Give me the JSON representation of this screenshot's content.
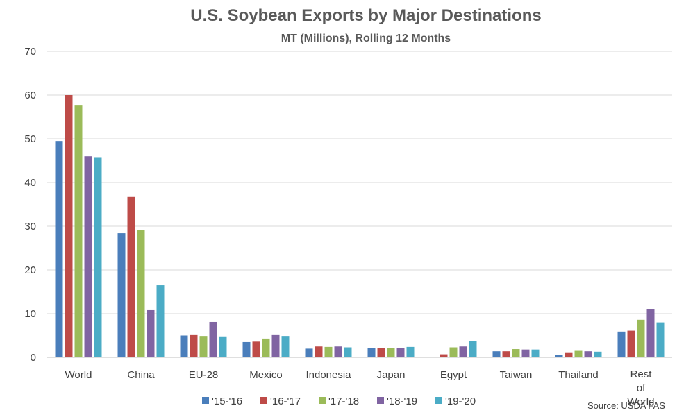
{
  "chart_data": {
    "type": "bar",
    "title": "U.S. Soybean Exports by Major Destinations",
    "subtitle": "MT (Millions), Rolling 12 Months",
    "categories": [
      "World",
      "China",
      "EU-28",
      "Mexico",
      "Indonesia",
      "Japan",
      "Egypt",
      "Taiwan",
      "Thailand",
      "Rest of World"
    ],
    "series": [
      {
        "name": "'15-'16",
        "color": "#4a7ebb",
        "values": [
          49.5,
          28.4,
          5.0,
          3.5,
          2.0,
          2.2,
          0.0,
          1.4,
          0.5,
          5.9
        ]
      },
      {
        "name": "'16-'17",
        "color": "#be4b48",
        "values": [
          60.0,
          36.7,
          5.1,
          3.6,
          2.5,
          2.2,
          0.7,
          1.4,
          1.0,
          6.1
        ]
      },
      {
        "name": "'17-'18",
        "color": "#9bbb59",
        "values": [
          57.6,
          29.2,
          4.9,
          4.3,
          2.4,
          2.2,
          2.3,
          1.9,
          1.5,
          8.6
        ]
      },
      {
        "name": "'18-'19",
        "color": "#8064a2",
        "values": [
          46.0,
          10.8,
          8.1,
          5.1,
          2.5,
          2.2,
          2.5,
          1.8,
          1.4,
          11.1
        ]
      },
      {
        "name": "'19-'20",
        "color": "#4bacc6",
        "values": [
          45.8,
          16.5,
          4.8,
          4.9,
          2.3,
          2.4,
          3.8,
          1.8,
          1.3,
          8.0
        ]
      }
    ],
    "ylim": [
      0,
      70
    ],
    "yticks": [
      0,
      10,
      20,
      30,
      40,
      50,
      60,
      70
    ],
    "grid": true,
    "legend_position": "bottom",
    "source": "Source: USDA FAS"
  }
}
